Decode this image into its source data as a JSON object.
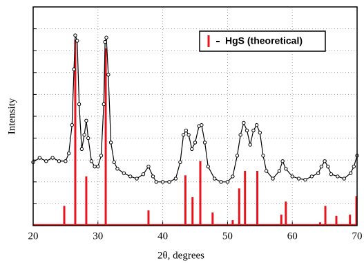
{
  "chart_data": {
    "type": "line",
    "x_label": "2θ, degrees",
    "y_label": "Intensity",
    "xlim": [
      20,
      70
    ],
    "xticks": [
      20,
      30,
      40,
      50,
      60,
      70
    ],
    "ylim": [
      0,
      100
    ],
    "yticks": [
      10,
      20,
      30,
      40,
      50,
      60,
      70,
      80,
      90
    ],
    "grid": true,
    "legend": "upper right",
    "series": [
      {
        "type": "line",
        "color": "#000000",
        "marker": "circle",
        "x": [
          20,
          21,
          22,
          23,
          24,
          25,
          25.5,
          26,
          26.3,
          26.5,
          26.8,
          27.1,
          27.5,
          27.9,
          28.2,
          28.5,
          29,
          29.5,
          30,
          30.5,
          30.9,
          31.1,
          31.3,
          31.6,
          32,
          32.5,
          33,
          34,
          35,
          36,
          37,
          37.8,
          38.5,
          39,
          40,
          41,
          42,
          42.7,
          43.2,
          43.6,
          44,
          44.5,
          45,
          45.6,
          46,
          46.5,
          47,
          48,
          49,
          50,
          50.8,
          51.5,
          52,
          52.5,
          53,
          53.5,
          54,
          54.5,
          55,
          55.5,
          56,
          57,
          58,
          58.5,
          59,
          60,
          61,
          62,
          63,
          64,
          64.5,
          65,
          65.5,
          66,
          67,
          68,
          69,
          69.5,
          70
        ],
        "values": [
          29,
          31,
          29.5,
          31,
          29.5,
          29.5,
          33,
          46,
          71.5,
          87,
          84.5,
          55.5,
          35,
          41.5,
          48,
          40,
          29.5,
          27,
          27,
          32,
          55.5,
          84,
          86,
          69,
          38,
          29,
          26,
          24,
          22.5,
          21.5,
          23.5,
          27,
          22.5,
          20,
          20,
          20,
          21.5,
          29,
          41.5,
          43.5,
          41.5,
          35,
          38,
          45.5,
          46,
          38,
          27,
          21.5,
          20,
          20,
          22.5,
          32,
          41.5,
          47,
          43.5,
          37,
          43.5,
          46,
          42.5,
          32,
          25,
          21.5,
          25,
          29.5,
          26,
          22.5,
          21.5,
          21,
          22.5,
          24,
          27,
          29.5,
          27,
          23.5,
          22.5,
          21.5,
          24,
          27,
          32
        ]
      },
      {
        "type": "stick",
        "name": "HgS (theoretical)",
        "color": "#e8141c",
        "x": [
          24.8,
          26.5,
          28.2,
          31.2,
          37.8,
          43.5,
          44.6,
          45.8,
          47.7,
          50.8,
          51.8,
          52.7,
          54.6,
          58.3,
          59.0,
          64.3,
          65.1,
          66.8,
          68.9,
          69.9
        ],
        "values": [
          9,
          85,
          22.5,
          81,
          7,
          23,
          13,
          29.5,
          6,
          2.5,
          17,
          25,
          25,
          5,
          11,
          1.5,
          9,
          4.5,
          5,
          13.5
        ]
      }
    ]
  }
}
